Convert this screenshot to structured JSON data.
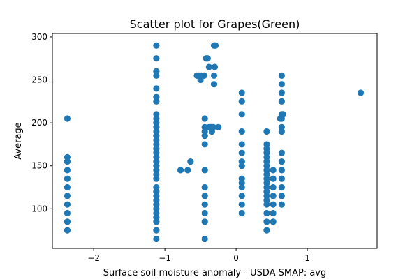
{
  "chart_data": {
    "type": "scatter",
    "title": "Scatter plot for Grapes(Green)",
    "xlabel": "Surface soil moisture anomaly  - USDA SMAP: avg",
    "ylabel": "Average",
    "xlim": [
      -2.58,
      1.98
    ],
    "ylim": [
      54,
      304
    ],
    "xticks": [
      -2,
      -1,
      0,
      1
    ],
    "xtick_labels": [
      "−2",
      "−1",
      "0",
      "1"
    ],
    "yticks": [
      100,
      150,
      200,
      250,
      300
    ],
    "ytick_labels": [
      "100",
      "150",
      "200",
      "250",
      "300"
    ],
    "grid": false,
    "marker_color": "#1f77b4",
    "series": [
      {
        "points": [
          [
            -2.37,
            205
          ],
          [
            -2.37,
            160
          ],
          [
            -2.37,
            155
          ],
          [
            -2.37,
            145
          ],
          [
            -2.37,
            135
          ],
          [
            -2.37,
            125
          ],
          [
            -2.37,
            115
          ],
          [
            -2.37,
            105
          ],
          [
            -2.37,
            95
          ],
          [
            -2.37,
            85
          ],
          [
            -2.37,
            75
          ],
          [
            -1.12,
            290
          ],
          [
            -1.12,
            275
          ],
          [
            -1.12,
            260
          ],
          [
            -1.12,
            255
          ],
          [
            -1.12,
            240
          ],
          [
            -1.12,
            230
          ],
          [
            -1.12,
            225
          ],
          [
            -1.12,
            210
          ],
          [
            -1.12,
            205
          ],
          [
            -1.12,
            200
          ],
          [
            -1.12,
            195
          ],
          [
            -1.12,
            190
          ],
          [
            -1.12,
            185
          ],
          [
            -1.12,
            180
          ],
          [
            -1.12,
            175
          ],
          [
            -1.12,
            170
          ],
          [
            -1.12,
            165
          ],
          [
            -1.12,
            160
          ],
          [
            -1.12,
            155
          ],
          [
            -1.12,
            150
          ],
          [
            -1.12,
            145
          ],
          [
            -1.12,
            140
          ],
          [
            -1.12,
            135
          ],
          [
            -1.12,
            125
          ],
          [
            -1.12,
            120
          ],
          [
            -1.12,
            115
          ],
          [
            -1.12,
            110
          ],
          [
            -1.12,
            105
          ],
          [
            -1.12,
            100
          ],
          [
            -1.12,
            95
          ],
          [
            -1.12,
            90
          ],
          [
            -1.12,
            85
          ],
          [
            -1.12,
            75
          ],
          [
            -1.12,
            65
          ],
          [
            -0.78,
            145
          ],
          [
            -0.68,
            145
          ],
          [
            -0.64,
            155
          ],
          [
            -0.55,
            255
          ],
          [
            -0.52,
            255
          ],
          [
            -0.5,
            250
          ],
          [
            -0.49,
            255
          ],
          [
            -0.45,
            255
          ],
          [
            -0.42,
            275
          ],
          [
            -0.4,
            275
          ],
          [
            -0.38,
            265
          ],
          [
            -0.31,
            290
          ],
          [
            -0.29,
            290
          ],
          [
            -0.3,
            265
          ],
          [
            -0.31,
            255
          ],
          [
            -0.31,
            245
          ],
          [
            -0.44,
            205
          ],
          [
            -0.44,
            195
          ],
          [
            -0.44,
            190
          ],
          [
            -0.44,
            185
          ],
          [
            -0.44,
            175
          ],
          [
            -0.44,
            145
          ],
          [
            -0.44,
            125
          ],
          [
            -0.44,
            115
          ],
          [
            -0.44,
            105
          ],
          [
            -0.44,
            95
          ],
          [
            -0.44,
            85
          ],
          [
            -0.44,
            65
          ],
          [
            -0.38,
            195
          ],
          [
            -0.36,
            195
          ],
          [
            -0.34,
            190
          ],
          [
            -0.34,
            195
          ],
          [
            -0.32,
            195
          ],
          [
            -0.25,
            195
          ],
          [
            0.08,
            235
          ],
          [
            0.08,
            225
          ],
          [
            0.08,
            210
          ],
          [
            0.08,
            190
          ],
          [
            0.08,
            175
          ],
          [
            0.08,
            165
          ],
          [
            0.08,
            155
          ],
          [
            0.08,
            150
          ],
          [
            0.08,
            135
          ],
          [
            0.08,
            130
          ],
          [
            0.08,
            125
          ],
          [
            0.08,
            115
          ],
          [
            0.08,
            105
          ],
          [
            0.08,
            95
          ],
          [
            0.43,
            190
          ],
          [
            0.43,
            175
          ],
          [
            0.43,
            170
          ],
          [
            0.43,
            165
          ],
          [
            0.43,
            160
          ],
          [
            0.43,
            155
          ],
          [
            0.43,
            150
          ],
          [
            0.43,
            145
          ],
          [
            0.43,
            140
          ],
          [
            0.43,
            135
          ],
          [
            0.43,
            130
          ],
          [
            0.43,
            125
          ],
          [
            0.43,
            120
          ],
          [
            0.43,
            115
          ],
          [
            0.43,
            110
          ],
          [
            0.43,
            105
          ],
          [
            0.43,
            95
          ],
          [
            0.43,
            85
          ],
          [
            0.43,
            75
          ],
          [
            0.52,
            145
          ],
          [
            0.52,
            135
          ],
          [
            0.52,
            125
          ],
          [
            0.52,
            115
          ],
          [
            0.52,
            105
          ],
          [
            0.52,
            95
          ],
          [
            0.52,
            85
          ],
          [
            0.64,
            255
          ],
          [
            0.64,
            245
          ],
          [
            0.64,
            235
          ],
          [
            0.64,
            225
          ],
          [
            0.64,
            210
          ],
          [
            0.64,
            205
          ],
          [
            0.64,
            195
          ],
          [
            0.64,
            190
          ],
          [
            0.64,
            165
          ],
          [
            0.64,
            155
          ],
          [
            0.64,
            145
          ],
          [
            0.64,
            135
          ],
          [
            0.64,
            125
          ],
          [
            0.64,
            115
          ],
          [
            0.64,
            105
          ],
          [
            0.66,
            210
          ],
          [
            0.62,
            205
          ],
          [
            1.75,
            235
          ]
        ]
      }
    ]
  }
}
